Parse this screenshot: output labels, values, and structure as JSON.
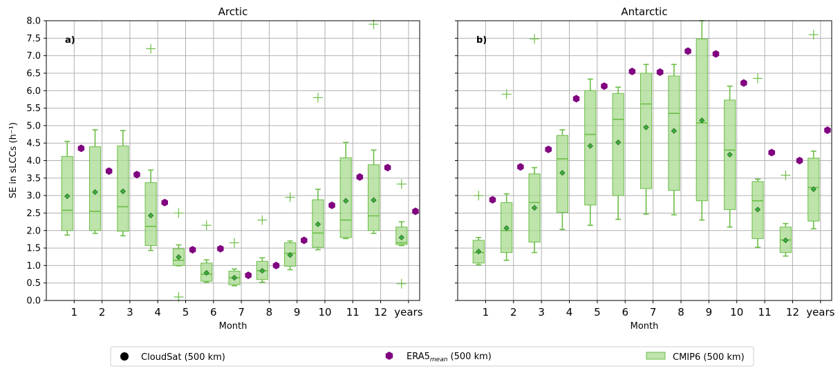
{
  "figure": {
    "ylabel": "SE in sLCCs (h⁻¹)",
    "xlabel": "Month"
  },
  "colors": {
    "cmip_line": "#6abe45",
    "cmip_fill": "#a8d98f",
    "era5": "#800080",
    "grid": "#b0b0b0"
  },
  "legend": {
    "cloudsat": "CloudSat (500 km)",
    "era5_base": "ERA5",
    "era5_sub": "mean",
    "era5_tail": " (500 km)",
    "cmip6": "CMIP6 (500 km)"
  },
  "chart_data": [
    {
      "type": "box",
      "title": "Arctic",
      "panel_label": "a)",
      "xlabel": "Month",
      "ylabel": "SE in sLCCs (h⁻¹)",
      "ylim": [
        0,
        8
      ],
      "yticks": [
        "0.0",
        "0.5",
        "1.0",
        "1.5",
        "2.0",
        "2.5",
        "3.0",
        "3.5",
        "4.0",
        "4.5",
        "5.0",
        "5.5",
        "6.0",
        "6.5",
        "7.0",
        "7.5",
        "8.0"
      ],
      "categories": [
        "1",
        "2",
        "3",
        "4",
        "5",
        "6",
        "7",
        "8",
        "9",
        "10",
        "11",
        "12",
        "years"
      ],
      "cmip6": [
        {
          "whislo": 1.87,
          "q1": 2.0,
          "median": 2.58,
          "q3": 4.12,
          "whishi": 4.55,
          "mean": 2.98,
          "fliers": []
        },
        {
          "whislo": 1.92,
          "q1": 2.0,
          "median": 2.55,
          "q3": 4.4,
          "whishi": 4.88,
          "mean": 3.1,
          "fliers": []
        },
        {
          "whislo": 1.85,
          "q1": 1.98,
          "median": 2.68,
          "q3": 4.42,
          "whishi": 4.86,
          "mean": 3.12,
          "fliers": []
        },
        {
          "whislo": 1.43,
          "q1": 1.57,
          "median": 2.12,
          "q3": 3.37,
          "whishi": 3.73,
          "mean": 2.43,
          "fliers": [
            7.2
          ]
        },
        {
          "whislo": 0.99,
          "q1": 1.0,
          "median": 1.15,
          "q3": 1.48,
          "whishi": 1.59,
          "mean": 1.24,
          "fliers": [
            2.5,
            0.1
          ]
        },
        {
          "whislo": 0.52,
          "q1": 0.55,
          "median": 0.75,
          "q3": 1.07,
          "whishi": 1.16,
          "mean": 0.79,
          "fliers": [
            2.15
          ]
        },
        {
          "whislo": 0.42,
          "q1": 0.45,
          "median": 0.65,
          "q3": 0.84,
          "whishi": 0.9,
          "mean": 0.65,
          "fliers": [
            1.65
          ]
        },
        {
          "whislo": 0.52,
          "q1": 0.6,
          "median": 0.85,
          "q3": 1.12,
          "whishi": 1.22,
          "mean": 0.85,
          "fliers": [
            2.3
          ]
        },
        {
          "whislo": 0.88,
          "q1": 0.98,
          "median": 1.35,
          "q3": 1.65,
          "whishi": 1.7,
          "mean": 1.3,
          "fliers": [
            2.95
          ]
        },
        {
          "whislo": 1.45,
          "q1": 1.52,
          "median": 1.93,
          "q3": 2.88,
          "whishi": 3.18,
          "mean": 2.18,
          "fliers": [
            5.8
          ]
        },
        {
          "whislo": 1.77,
          "q1": 1.8,
          "median": 2.3,
          "q3": 4.08,
          "whishi": 4.52,
          "mean": 2.85,
          "fliers": []
        },
        {
          "whislo": 1.92,
          "q1": 2.0,
          "median": 2.42,
          "q3": 3.88,
          "whishi": 4.3,
          "mean": 2.87,
          "fliers": [
            7.9
          ]
        },
        {
          "whislo": 1.57,
          "q1": 1.6,
          "median": 1.65,
          "q3": 2.1,
          "whishi": 2.25,
          "mean": 1.8,
          "fliers": [
            3.33,
            0.48
          ]
        }
      ],
      "era5": [
        4.35,
        3.7,
        3.6,
        2.8,
        1.45,
        1.48,
        0.72,
        1.0,
        1.72,
        2.72,
        3.53,
        3.8,
        2.55
      ]
    },
    {
      "type": "box",
      "title": "Antarctic",
      "panel_label": "b)",
      "xlabel": "Month",
      "ylim": [
        0,
        8
      ],
      "categories": [
        "1",
        "2",
        "3",
        "4",
        "5",
        "6",
        "7",
        "8",
        "9",
        "10",
        "11",
        "12",
        "years"
      ],
      "cmip6": [
        {
          "whislo": 1.02,
          "q1": 1.07,
          "median": 1.37,
          "q3": 1.72,
          "whishi": 1.8,
          "mean": 1.4,
          "fliers": [
            3.0
          ]
        },
        {
          "whislo": 1.15,
          "q1": 1.37,
          "median": 2.0,
          "q3": 2.8,
          "whishi": 3.05,
          "mean": 2.07,
          "fliers": [
            5.9
          ]
        },
        {
          "whislo": 1.37,
          "q1": 1.67,
          "median": 2.8,
          "q3": 3.62,
          "whishi": 3.8,
          "mean": 2.65,
          "fliers": [
            7.48
          ]
        },
        {
          "whislo": 2.03,
          "q1": 2.52,
          "median": 4.05,
          "q3": 4.72,
          "whishi": 4.88,
          "mean": 3.65,
          "fliers": []
        },
        {
          "whislo": 2.15,
          "q1": 2.73,
          "median": 4.75,
          "q3": 6.0,
          "whishi": 6.33,
          "mean": 4.42,
          "fliers": []
        },
        {
          "whislo": 2.32,
          "q1": 3.0,
          "median": 5.18,
          "q3": 5.92,
          "whishi": 6.1,
          "mean": 4.52,
          "fliers": []
        },
        {
          "whislo": 2.47,
          "q1": 3.2,
          "median": 5.62,
          "q3": 6.5,
          "whishi": 6.75,
          "mean": 4.95,
          "fliers": []
        },
        {
          "whislo": 2.45,
          "q1": 3.15,
          "median": 5.35,
          "q3": 6.42,
          "whishi": 6.75,
          "mean": 4.85,
          "fliers": []
        },
        {
          "whislo": 2.3,
          "q1": 2.85,
          "median": 5.08,
          "q3": 7.48,
          "whishi": 8.0,
          "mean": 5.15,
          "fliers": []
        },
        {
          "whislo": 2.1,
          "q1": 2.6,
          "median": 4.3,
          "q3": 5.73,
          "whishi": 6.13,
          "mean": 4.17,
          "fliers": []
        },
        {
          "whislo": 1.52,
          "q1": 1.77,
          "median": 2.85,
          "q3": 3.4,
          "whishi": 3.47,
          "mean": 2.6,
          "fliers": [
            6.35
          ]
        },
        {
          "whislo": 1.27,
          "q1": 1.37,
          "median": 1.73,
          "q3": 2.1,
          "whishi": 2.2,
          "mean": 1.72,
          "fliers": [
            3.58
          ]
        },
        {
          "whislo": 2.05,
          "q1": 2.27,
          "median": 3.23,
          "q3": 4.07,
          "whishi": 4.27,
          "mean": 3.18,
          "fliers": [
            7.6
          ]
        }
      ],
      "era5": [
        2.88,
        3.82,
        4.32,
        5.77,
        6.13,
        6.55,
        6.53,
        7.13,
        7.05,
        6.22,
        4.23,
        4.0,
        4.87
      ]
    }
  ]
}
